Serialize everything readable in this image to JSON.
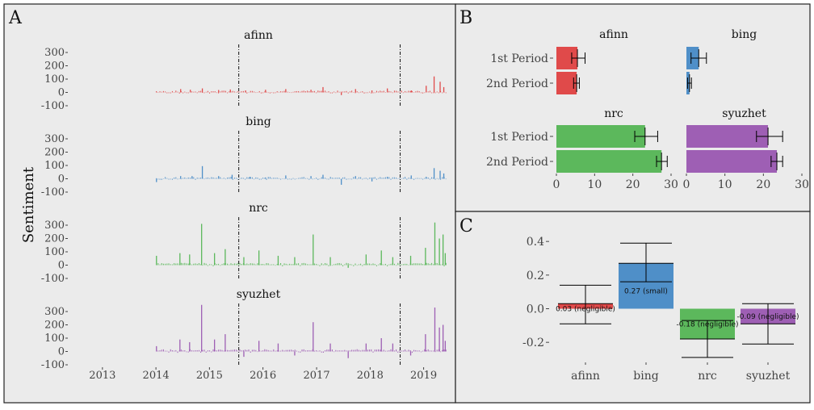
{
  "panels": {
    "a": {
      "letter": "A",
      "ylabel": "Sentiment"
    },
    "b": {
      "letter": "B"
    },
    "c": {
      "letter": "C"
    }
  },
  "colors": {
    "afinn": "#e04a4a",
    "bing": "#4f8fc8",
    "nrc": "#5cb85c",
    "syuzhet": "#9e5fb4",
    "panel_bg": "#ebebeb",
    "border": "#222222"
  },
  "chart_data": [
    {
      "type": "bar",
      "panel": "A",
      "facets": [
        "afinn",
        "bing",
        "nrc",
        "syuzhet"
      ],
      "x_ticks": [
        "2013",
        "2014",
        "2015",
        "2016",
        "2017",
        "2018",
        "2019"
      ],
      "xlim": [
        "2012-06-01",
        "2019-06-01"
      ],
      "y_ticks": [
        "300",
        "200",
        "100",
        "0",
        "-100"
      ],
      "ylim": [
        -100,
        300
      ],
      "ylabel": "Sentiment",
      "vlines": [
        "2015-07-20",
        "2018-07-25"
      ],
      "series": [
        {
          "name": "afinn",
          "x": [
            "2014-01-01",
            "2014-06-15",
            "2014-08-20",
            "2014-11-10",
            "2015-03-01",
            "2015-05-20",
            "2015-09-01",
            "2016-01-15",
            "2016-06-01",
            "2016-11-20",
            "2017-02-10",
            "2017-06-15",
            "2017-09-20",
            "2018-01-10",
            "2018-04-25",
            "2018-10-05",
            "2019-01-15",
            "2019-03-10",
            "2019-04-20",
            "2019-05-15"
          ],
          "y": [
            5,
            25,
            20,
            30,
            18,
            22,
            15,
            20,
            25,
            20,
            40,
            -20,
            25,
            15,
            30,
            15,
            50,
            120,
            80,
            40
          ]
        },
        {
          "name": "bing",
          "x": [
            "2014-01-01",
            "2014-06-15",
            "2014-09-01",
            "2014-11-10",
            "2015-03-01",
            "2015-06-01",
            "2015-10-01",
            "2016-01-15",
            "2016-06-01",
            "2016-11-20",
            "2017-02-10",
            "2017-06-15",
            "2017-09-20",
            "2018-01-10",
            "2018-04-25",
            "2018-10-05",
            "2019-01-15",
            "2019-03-10",
            "2019-04-20",
            "2019-05-15"
          ],
          "y": [
            -25,
            20,
            20,
            95,
            20,
            30,
            15,
            10,
            25,
            20,
            30,
            -45,
            20,
            -20,
            15,
            25,
            15,
            80,
            60,
            40
          ]
        },
        {
          "name": "nrc",
          "x": [
            "2014-01-01",
            "2014-06-10",
            "2014-08-15",
            "2014-11-05",
            "2015-02-01",
            "2015-04-15",
            "2015-08-20",
            "2015-12-01",
            "2016-04-10",
            "2016-08-01",
            "2016-12-05",
            "2017-04-01",
            "2017-08-01",
            "2017-12-01",
            "2018-03-15",
            "2018-06-01",
            "2018-10-01",
            "2019-01-10",
            "2019-03-15",
            "2019-04-15",
            "2019-05-10",
            "2019-05-25"
          ],
          "y": [
            70,
            90,
            80,
            310,
            90,
            120,
            60,
            110,
            70,
            60,
            230,
            60,
            -20,
            80,
            110,
            60,
            70,
            130,
            320,
            200,
            230,
            90
          ]
        },
        {
          "name": "syuzhet",
          "x": [
            "2014-01-01",
            "2014-06-10",
            "2014-08-15",
            "2014-11-05",
            "2015-02-01",
            "2015-04-15",
            "2015-08-20",
            "2015-12-01",
            "2016-04-10",
            "2016-08-01",
            "2016-12-05",
            "2017-04-01",
            "2017-08-01",
            "2017-12-01",
            "2018-03-15",
            "2018-06-01",
            "2018-10-01",
            "2019-01-10",
            "2019-03-15",
            "2019-04-15",
            "2019-05-10",
            "2019-05-25"
          ],
          "y": [
            40,
            90,
            70,
            350,
            90,
            130,
            -40,
            80,
            60,
            -30,
            220,
            60,
            -50,
            60,
            100,
            60,
            -30,
            130,
            330,
            180,
            200,
            80
          ]
        }
      ]
    },
    {
      "type": "bar",
      "panel": "B",
      "orientation": "horizontal",
      "categories": [
        "1st Period",
        "2nd Period"
      ],
      "x_ticks": [
        "0",
        "10",
        "20",
        "30"
      ],
      "xlim": [
        0,
        30
      ],
      "series": [
        {
          "name": "afinn",
          "values": [
            5.5,
            5.3
          ],
          "ci_low": [
            4,
            4.5
          ],
          "ci_high": [
            7.5,
            6
          ]
        },
        {
          "name": "bing",
          "values": [
            3.2,
            0.8
          ],
          "ci_low": [
            1.2,
            0.3
          ],
          "ci_high": [
            5.2,
            1.3
          ]
        },
        {
          "name": "nrc",
          "values": [
            23.2,
            27.5
          ],
          "ci_low": [
            20.5,
            26.2
          ],
          "ci_high": [
            26.5,
            29
          ]
        },
        {
          "name": "syuzhet",
          "values": [
            21.2,
            23.5
          ],
          "ci_low": [
            18.2,
            22
          ],
          "ci_high": [
            25,
            25
          ]
        }
      ]
    },
    {
      "type": "bar",
      "panel": "C",
      "categories": [
        "afinn",
        "bing",
        "nrc",
        "syuzhet"
      ],
      "y_ticks": [
        "0.4",
        "0.2",
        "0.0",
        "-0.2"
      ],
      "ylim": [
        -0.3,
        0.42
      ],
      "series": [
        {
          "name": "effect",
          "values": [
            0.03,
            0.27,
            -0.18,
            -0.09
          ],
          "ci_low": [
            -0.09,
            0.16,
            -0.29,
            -0.21
          ],
          "ci_high": [
            0.14,
            0.39,
            -0.07,
            0.03
          ]
        }
      ],
      "labels": [
        "0.03 (negligible)",
        "0.27 (small)",
        "-0.18 (negligible)",
        "-0.09 (negligible)"
      ]
    }
  ]
}
